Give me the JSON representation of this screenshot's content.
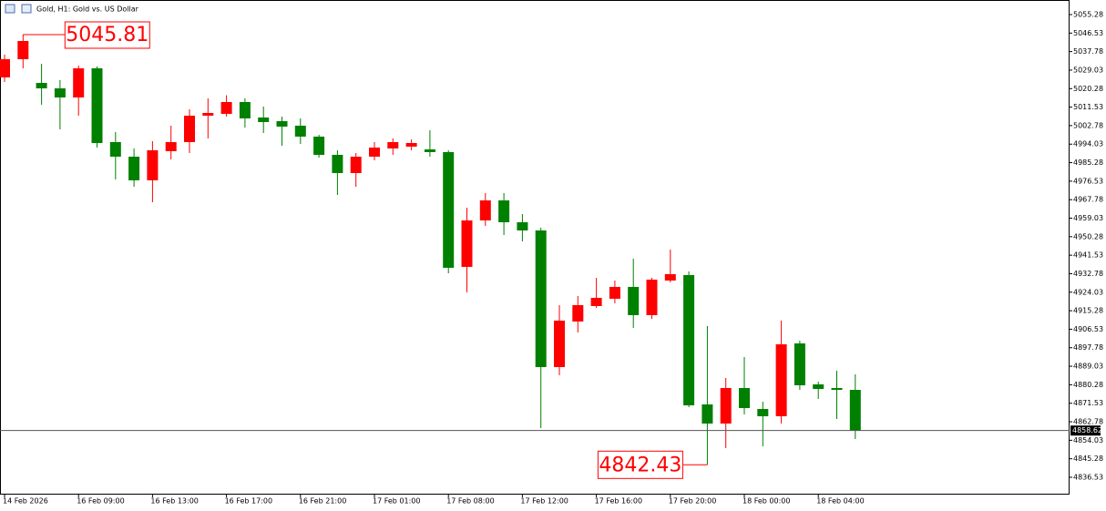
{
  "chart_data": {
    "type": "candlestick",
    "title": "Gold, H1:  Gold vs. US Dollar",
    "categories": [
      "14 Feb 2026",
      null,
      null,
      null,
      "16 Feb 09:00",
      null,
      null,
      null,
      "16 Feb 13:00",
      null,
      null,
      null,
      "16 Feb 17:00",
      null,
      null,
      null,
      "16 Feb 21:00",
      null,
      null,
      null,
      "17 Feb 01:00",
      null,
      null,
      null,
      "17 Feb 08:00",
      null,
      null,
      null,
      "17 Feb 12:00",
      null,
      null,
      null,
      "17 Feb 16:00",
      null,
      null,
      null,
      "17 Feb 20:00",
      null,
      null,
      null,
      "18 Feb 00:00",
      null,
      null,
      null,
      "18 Feb 04:00",
      null,
      null
    ],
    "open": [
      5025.57,
      5034.18,
      5022.98,
      5020.4,
      5016.09,
      5029.87,
      4994.99,
      4988.1,
      4976.91,
      4990.69,
      4994.99,
      5007.48,
      5008.34,
      5013.94,
      5006.62,
      5004.9,
      5002.74,
      4997.58,
      4988.96,
      4980.35,
      4988.1,
      4991.98,
      4992.84,
      4991.55,
      4990.26,
      4936.0,
      4957.96,
      4967.43,
      4957.1,
      4953.22,
      4888.63,
      4910.16,
      4917.48,
      4920.93,
      4926.53,
      4913.18,
      4929.54,
      4932.12,
      4870.97,
      4861.93,
      4878.73,
      4868.82,
      4865.38,
      4899.82,
      4880.45,
      4878.73,
      4877.86
    ],
    "high": [
      5036.33,
      5045.81,
      5032.03,
      5024.28,
      5031.17,
      5030.73,
      4999.73,
      4991.98,
      4995.42,
      5002.74,
      5010.5,
      5015.66,
      5017.12,
      5015.66,
      5011.79,
      5007.05,
      5006.19,
      4998.44,
      4991.12,
      4989.83,
      4994.99,
      4996.71,
      4996.28,
      5000.59,
      4991.12,
      4963.99,
      4970.88,
      4970.88,
      4960.97,
      4954.52,
      4917.91,
      4922.22,
      4930.81,
      4929.54,
      4939.87,
      4930.81,
      4944.18,
      4933.85,
      4908.01,
      4883.46,
      4893.37,
      4872.27,
      4910.59,
      4901.12,
      4881.74,
      4886.91,
      4885.19
    ],
    "low": [
      5023.41,
      5029.87,
      5012.65,
      5001.02,
      5007.48,
      4992.41,
      4977.34,
      4973.89,
      4966.57,
      4986.81,
      4989.83,
      4996.71,
      5007.05,
      5001.88,
      4999.3,
      4993.27,
      4994.13,
      4987.67,
      4970.02,
      4973.89,
      4986.38,
      4988.96,
      4991.12,
      4988.1,
      4932.98,
      4923.94,
      4955.38,
      4951.07,
      4948.06,
      4859.78,
      4884.75,
      4904.99,
      4916.62,
      4918.77,
      4907.15,
      4911.45,
      4928.68,
      4869.68,
      4842.43,
      4850.3,
      4866.21,
      4851.16,
      4861.93,
      4877.86,
      4873.56,
      4864.08,
      4854.61
    ],
    "close": [
      5034.18,
      5042.79,
      5020.4,
      5016.09,
      5029.87,
      4994.56,
      4988.1,
      4976.91,
      4991.12,
      4994.99,
      5007.48,
      5008.77,
      5013.94,
      5006.19,
      5004.47,
      5002.31,
      4997.58,
      4988.96,
      4980.35,
      4988.1,
      4992.41,
      4994.99,
      4994.56,
      4990.26,
      4935.57,
      4957.96,
      4967.43,
      4957.1,
      4953.22,
      4888.63,
      4910.59,
      4917.91,
      4921.36,
      4926.53,
      4913.18,
      4929.97,
      4932.55,
      4870.54,
      4861.93,
      4878.73,
      4869.25,
      4865.38,
      4899.39,
      4880.02,
      4878.29,
      4877.86,
      4858.62
    ],
    "up_color": "#ff0000",
    "down_color": "#008000",
    "ylim": [
      4828.34,
      5062.17
    ],
    "yticks": [
      5055.28,
      5046.53,
      5037.78,
      5029.03,
      5020.28,
      5011.53,
      5002.78,
      4994.03,
      4985.28,
      4976.53,
      4967.78,
      4959.03,
      4950.28,
      4941.53,
      4932.78,
      4924.03,
      4915.28,
      4906.53,
      4897.78,
      4889.03,
      4880.28,
      4871.53,
      4862.78,
      4854.03,
      4845.28,
      4836.53
    ],
    "grid": false
  }
}
